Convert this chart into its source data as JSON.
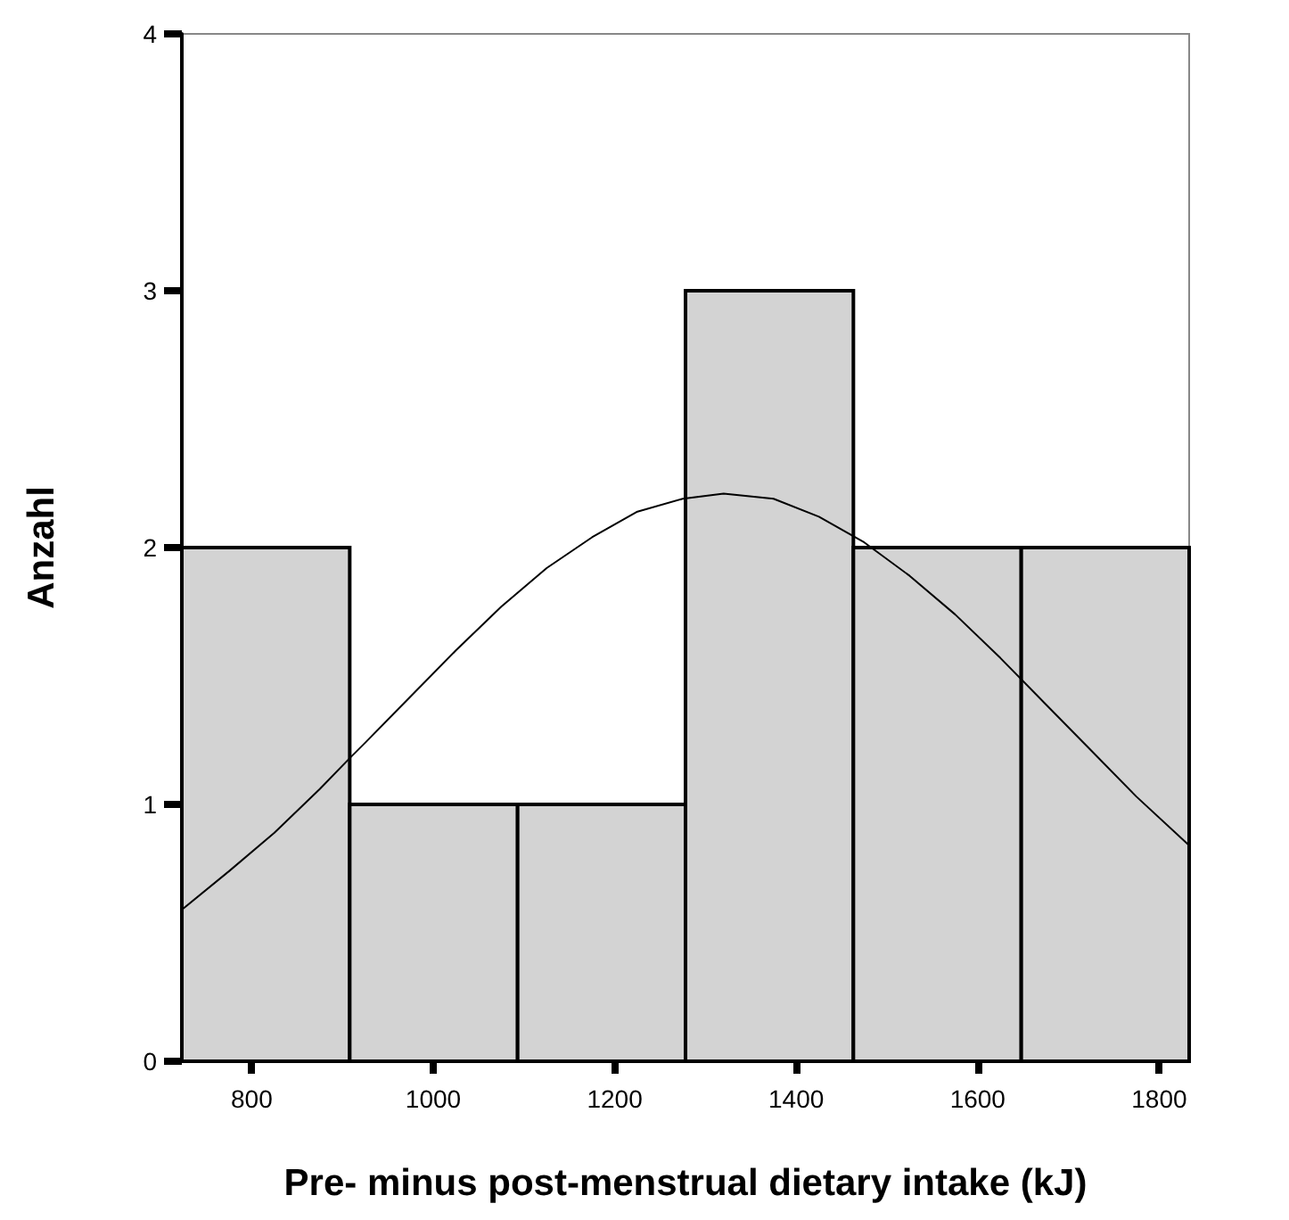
{
  "chart_data": {
    "type": "histogram",
    "xlabel": "Pre- minus post-menstrual dietary intake (kJ)",
    "ylabel": "Anzahl",
    "bins": [
      723,
      908,
      1093,
      1278,
      1463,
      1648,
      1833
    ],
    "xlim": [
      723,
      1833
    ],
    "xticks": [
      800,
      1000,
      1200,
      1400,
      1600,
      1800
    ],
    "ylim": [
      0,
      4
    ],
    "yticks": [
      0,
      1,
      2,
      3,
      4
    ],
    "grid": false,
    "marker": "none",
    "series": [
      {
        "color": "#d3d3d3",
        "values": [
          2,
          1,
          1,
          3,
          2,
          2
        ]
      },
      {
        "type": "line",
        "color": "#000000",
        "line_style": "solid",
        "x": [
          723,
          775,
          825,
          875,
          908,
          925,
          975,
          1025,
          1075,
          1125,
          1175,
          1225,
          1275,
          1320,
          1375,
          1425,
          1475,
          1525,
          1575,
          1625,
          1675,
          1725,
          1775,
          1833
        ],
        "values": [
          0.59,
          0.74,
          0.89,
          1.06,
          1.18,
          1.24,
          1.42,
          1.6,
          1.77,
          1.92,
          2.04,
          2.14,
          2.19,
          2.21,
          2.19,
          2.12,
          2.02,
          1.89,
          1.74,
          1.57,
          1.39,
          1.21,
          1.03,
          0.84
        ]
      }
    ]
  }
}
